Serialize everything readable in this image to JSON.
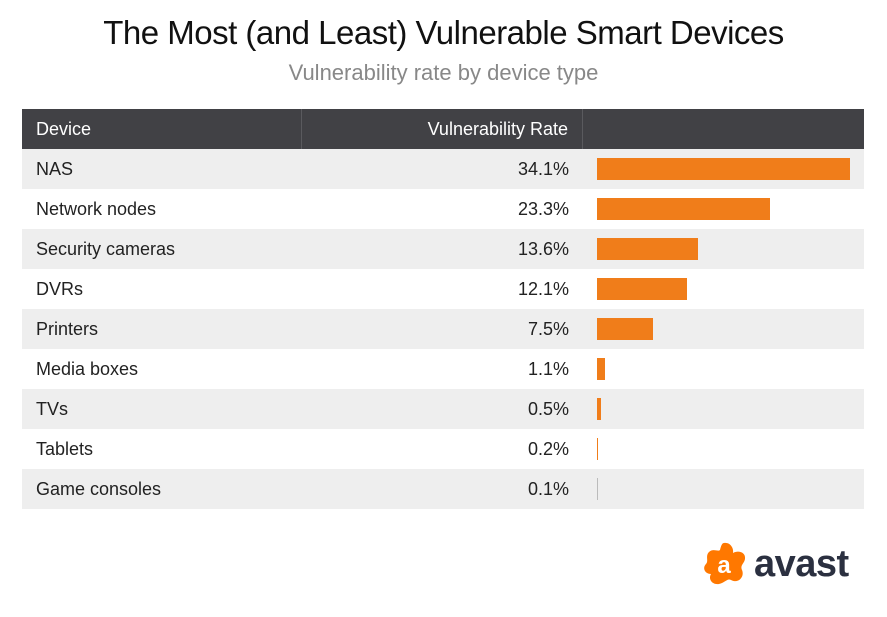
{
  "chart_data": {
    "type": "table",
    "title": "The Most (and Least) Vulnerable Smart Devices",
    "subtitle": "Vulnerability rate by device type",
    "columns": [
      "Device",
      "Vulnerability Rate",
      ""
    ],
    "categories": [
      "NAS",
      "Network nodes",
      "Security cameras",
      "DVRs",
      "Printers",
      "Media boxes",
      "TVs",
      "Tablets",
      "Game consoles"
    ],
    "values": [
      34.1,
      23.3,
      13.6,
      12.1,
      7.5,
      1.1,
      0.5,
      0.2,
      0.1
    ],
    "labels": [
      "34.1%",
      "23.3%",
      "13.6%",
      "12.1%",
      "7.5%",
      "1.1%",
      "0.5%",
      "0.2%",
      "0.1%"
    ],
    "bar_color": "#f07d1a",
    "header_color": "#414145"
  },
  "logo": {
    "text": "avast",
    "color": "#ff7800"
  }
}
